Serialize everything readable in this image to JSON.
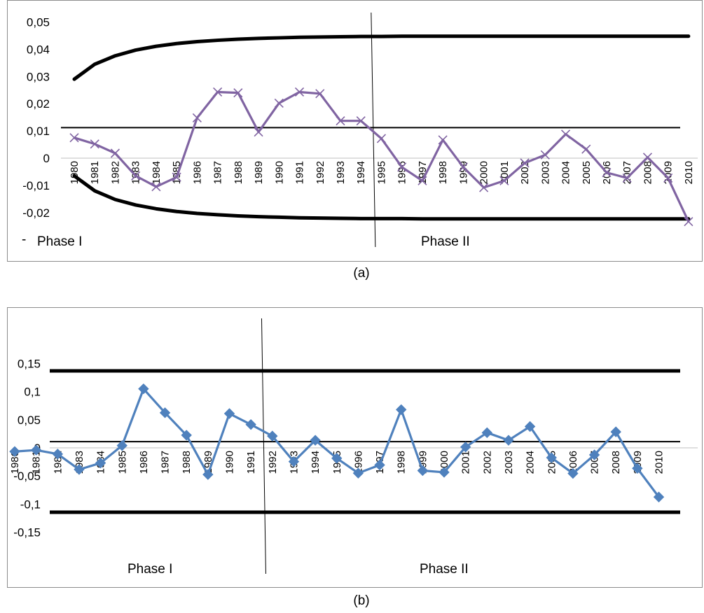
{
  "captions": {
    "a": "(a)",
    "b": "(b)"
  },
  "colors": {
    "series_a": "#8064a2",
    "series_b": "#4f81bd",
    "limits": "#000000",
    "axis": "#bfbfbf"
  },
  "chart_data": [
    {
      "type": "line",
      "caption": "(a)",
      "title": "",
      "xlabel": "",
      "ylabel": "",
      "ylim": [
        -0.03,
        0.05
      ],
      "yticks": [
        "0,05",
        "0,04",
        "0,03",
        "0,02",
        "0,01",
        "0",
        "-0,01",
        "-0,02"
      ],
      "ytick_values": [
        0.05,
        0.04,
        0.03,
        0.02,
        0.01,
        0,
        -0.01,
        -0.02
      ],
      "categories": [
        "1980",
        "1981",
        "1982",
        "1983",
        "1984",
        "1985",
        "1986",
        "1987",
        "1988",
        "1989",
        "1990",
        "1991",
        "1992",
        "1993",
        "1994",
        "1995",
        "1996",
        "1997",
        "1998",
        "1999",
        "2000",
        "2001",
        "2002",
        "2003",
        "2004",
        "2005",
        "2006",
        "2007",
        "2008",
        "2009",
        "2010"
      ],
      "series": [
        {
          "marker": "x",
          "values": [
            0.0075,
            0.0052,
            0.0018,
            -0.0065,
            -0.0105,
            -0.007,
            0.0148,
            0.0243,
            0.024,
            0.0096,
            0.0202,
            0.0243,
            0.0237,
            0.0137,
            0.0137,
            0.0072,
            -0.0033,
            -0.0083,
            0.0067,
            -0.0033,
            -0.0108,
            -0.0083,
            -0.0018,
            0.0012,
            0.0088,
            0.0033,
            -0.0053,
            -0.0073,
            0.0003,
            -0.0073,
            -0.0233
          ]
        }
      ],
      "limits": {
        "center": 0.0112,
        "upper": [
          0.029,
          0.0345,
          0.0376,
          0.0397,
          0.0411,
          0.0421,
          0.0428,
          0.0433,
          0.0437,
          0.044,
          0.0442,
          0.0444,
          0.0445,
          0.0446,
          0.0447,
          0.0447,
          0.0448,
          0.0448,
          0.0448,
          0.0448,
          0.0448,
          0.0448,
          0.0448,
          0.0448,
          0.0448,
          0.0448,
          0.0448,
          0.0448,
          0.0448,
          0.0448,
          0.0448
        ],
        "lower": [
          -0.0065,
          -0.012,
          -0.0152,
          -0.0172,
          -0.0186,
          -0.0196,
          -0.0203,
          -0.0208,
          -0.0212,
          -0.0215,
          -0.0217,
          -0.0219,
          -0.022,
          -0.0221,
          -0.0222,
          -0.0222,
          -0.0222,
          -0.0223,
          -0.0223,
          -0.0223,
          -0.0223,
          -0.0223,
          -0.0223,
          -0.0223,
          -0.0223,
          -0.0223,
          -0.0223,
          -0.0223,
          -0.0223,
          -0.0223,
          -0.0223
        ]
      },
      "phase_split_after": "1994",
      "phase_labels": [
        "Phase I",
        "Phase II"
      ],
      "stray_mark": "-"
    },
    {
      "type": "line",
      "caption": "(b)",
      "title": "",
      "xlabel": "",
      "ylabel": "",
      "ylim": [
        -0.15,
        0.15
      ],
      "yticks": [
        "0,15",
        "0,1",
        "0,05",
        "0",
        "-0,05",
        "-0,1",
        "-0,15"
      ],
      "ytick_values": [
        0.15,
        0.1,
        0.05,
        0,
        -0.05,
        -0.1,
        -0.15
      ],
      "categories": [
        "1980",
        "1981",
        "1982",
        "1983",
        "1984",
        "1985",
        "1986",
        "1987",
        "1988",
        "1989",
        "1990",
        "1991",
        "1992",
        "1993",
        "1994",
        "1995",
        "1996",
        "1997",
        "1998",
        "1999",
        "2000",
        "2001",
        "2002",
        "2003",
        "2004",
        "2005",
        "2006",
        "2007",
        "2008",
        "2009",
        "2010"
      ],
      "series": [
        {
          "marker": "diamond",
          "values": [
            -0.0065,
            -0.004,
            -0.011,
            -0.0385,
            -0.027,
            0.004,
            0.105,
            0.0625,
            0.0225,
            -0.0475,
            0.061,
            0.0415,
            0.021,
            -0.0245,
            0.0135,
            -0.0185,
            -0.045,
            -0.0305,
            0.068,
            -0.0405,
            -0.0435,
            0.0015,
            0.027,
            0.0135,
            0.038,
            -0.0175,
            -0.0455,
            -0.0125,
            0.0285,
            -0.0365,
            -0.0875
          ]
        }
      ],
      "limits": {
        "center": 0.011,
        "upper": 0.137,
        "lower": -0.1145
      },
      "phase_split_after": "1991",
      "phase_labels": [
        "Phase I",
        "Phase II"
      ]
    }
  ]
}
